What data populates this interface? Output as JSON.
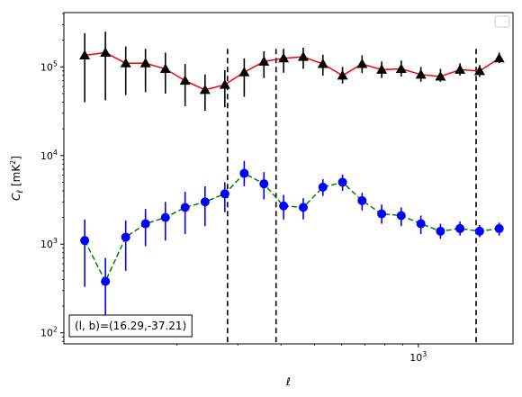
{
  "chart_data": {
    "type": "scatter",
    "xscale": "log",
    "yscale": "log",
    "xlim": [
      94,
      1880
    ],
    "ylim": [
      75,
      410000
    ],
    "xlabel": "ℓ",
    "ylabel": "C_ℓ [mK²]",
    "legend": "top-right",
    "annotation": "(l, b)=(16.29,-37.21)",
    "x_ticks": [
      {
        "value": 1000,
        "label": "10^3"
      }
    ],
    "y_ticks": [
      {
        "value": 100,
        "label": "10^2"
      },
      {
        "value": 1000,
        "label": "10^3"
      },
      {
        "value": 10000,
        "label": "10^4"
      },
      {
        "value": 100000,
        "label": "10^5"
      }
    ],
    "vlines": [
      280,
      387,
      1470
    ],
    "series": [
      {
        "color": "#000000",
        "line_color": "#ff0000",
        "line_style": "solid",
        "marker": "triangle",
        "x": [
          108,
          124,
          142,
          162,
          185,
          211,
          241,
          275,
          313,
          357,
          407,
          464,
          529,
          603,
          687,
          783,
          892,
          1017,
          1159,
          1320,
          1505,
          1715
        ],
        "y": [
          135000,
          145000,
          110000,
          110000,
          95000,
          70000,
          55000,
          63000,
          87000,
          115000,
          125000,
          130000,
          108000,
          80000,
          108000,
          93000,
          95000,
          82000,
          78000,
          93000,
          90000,
          125000
        ],
        "yerr_low": [
          40000,
          42000,
          48000,
          52000,
          50000,
          36000,
          32000,
          35000,
          46000,
          75000,
          86000,
          95000,
          80000,
          65000,
          85000,
          75000,
          78000,
          68000,
          68000,
          80000,
          77000,
          110000
        ],
        "yerr_high": [
          240000,
          250000,
          170000,
          160000,
          145000,
          108000,
          82000,
          92000,
          125000,
          150000,
          160000,
          165000,
          137000,
          100000,
          135000,
          115000,
          118000,
          100000,
          95000,
          110000,
          105000,
          145000
        ]
      },
      {
        "color": "#0000ff",
        "line_color": "#008000",
        "line_style": "dashed",
        "marker": "circle",
        "x": [
          108,
          124,
          142,
          162,
          185,
          211,
          241,
          275,
          313,
          357,
          407,
          464,
          529,
          603,
          687,
          783,
          892,
          1017,
          1159,
          1320,
          1505,
          1715
        ],
        "y": [
          1100,
          380,
          1200,
          1700,
          2000,
          2600,
          3000,
          3700,
          6300,
          4800,
          2700,
          2600,
          4400,
          5000,
          3100,
          2200,
          2100,
          1700,
          1400,
          1500,
          1400,
          1500
        ],
        "yerr_low": [
          330,
          150,
          500,
          950,
          1100,
          1300,
          1600,
          2300,
          4500,
          3200,
          1900,
          1900,
          3500,
          4000,
          2400,
          1700,
          1600,
          1300,
          1150,
          1250,
          1200,
          1250
        ],
        "yerr_high": [
          1900,
          700,
          1850,
          2500,
          3000,
          3900,
          4500,
          5000,
          8700,
          6500,
          3600,
          3300,
          5400,
          6100,
          3800,
          2800,
          2600,
          2100,
          1700,
          1800,
          1650,
          1750
        ]
      }
    ]
  }
}
